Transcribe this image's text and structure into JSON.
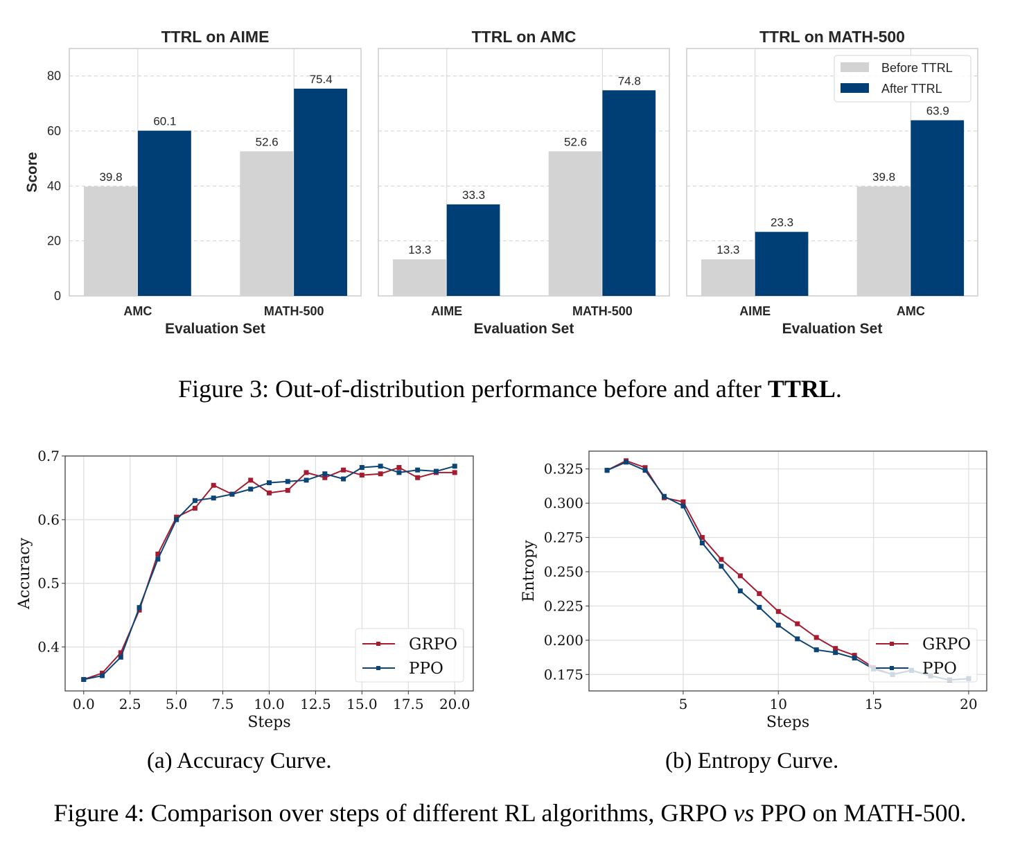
{
  "figure3": {
    "caption_prefix": "Figure 3: Out-of-distribution performance before and after ",
    "caption_bold": "TTRL",
    "caption_suffix": "."
  },
  "figure4": {
    "caption_prefix": "Figure 4: Comparison over steps of different RL algorithms, GRPO ",
    "caption_italic": "vs",
    "caption_suffix": " PPO on MATH-500.",
    "subcaption_a": "(a) Accuracy Curve.",
    "subcaption_b": "(b) Entropy Curve."
  },
  "colors": {
    "before": "#d3d3d3",
    "after": "#003f75",
    "grpo": "#a51c30",
    "ppo": "#0b4476"
  },
  "chart_data": [
    {
      "type": "bar",
      "title": "TTRL on AIME",
      "xlabel": "Evaluation Set",
      "ylabel": "Score",
      "categories": [
        "AMC",
        "MATH-500"
      ],
      "series": [
        {
          "name": "Before TTRL",
          "values": [
            39.8,
            52.6
          ]
        },
        {
          "name": "After TTRL",
          "values": [
            60.1,
            75.4
          ]
        }
      ],
      "ylim": [
        0,
        90
      ],
      "yticks": [
        0,
        20,
        40,
        60,
        80
      ],
      "grid": true
    },
    {
      "type": "bar",
      "title": "TTRL on AMC",
      "xlabel": "Evaluation Set",
      "ylabel": "",
      "categories": [
        "AIME",
        "MATH-500"
      ],
      "series": [
        {
          "name": "Before TTRL",
          "values": [
            13.3,
            52.6
          ]
        },
        {
          "name": "After TTRL",
          "values": [
            33.3,
            74.8
          ]
        }
      ],
      "ylim": [
        0,
        90
      ],
      "grid": true
    },
    {
      "type": "bar",
      "title": "TTRL on MATH-500",
      "xlabel": "Evaluation Set",
      "ylabel": "",
      "categories": [
        "AIME",
        "AMC"
      ],
      "series": [
        {
          "name": "Before TTRL",
          "values": [
            13.3,
            39.8
          ]
        },
        {
          "name": "After TTRL",
          "values": [
            23.3,
            63.9
          ]
        }
      ],
      "ylim": [
        0,
        90
      ],
      "legend": [
        "Before TTRL",
        "After TTRL"
      ],
      "legend_position": "top-right",
      "grid": true
    },
    {
      "type": "line",
      "title": "",
      "xlabel": "Steps",
      "ylabel": "Accuracy",
      "x": [
        0,
        1,
        2,
        3,
        4,
        5,
        6,
        7,
        8,
        9,
        10,
        11,
        12,
        13,
        14,
        15,
        16,
        17,
        18,
        19,
        20
      ],
      "series": [
        {
          "name": "GRPO",
          "values": [
            0.349,
            0.359,
            0.391,
            0.458,
            0.546,
            0.604,
            0.618,
            0.654,
            0.64,
            0.662,
            0.642,
            0.646,
            0.674,
            0.666,
            0.678,
            0.67,
            0.672,
            0.682,
            0.666,
            0.674,
            0.674
          ]
        },
        {
          "name": "PPO",
          "values": [
            0.349,
            0.355,
            0.384,
            0.462,
            0.538,
            0.6,
            0.63,
            0.634,
            0.64,
            0.648,
            0.658,
            0.66,
            0.662,
            0.672,
            0.664,
            0.682,
            0.684,
            0.674,
            0.678,
            0.676,
            0.684
          ]
        }
      ],
      "xlim": [
        -1,
        21
      ],
      "ylim": [
        0.331,
        0.7
      ],
      "xticks": [
        "0.0",
        "2.5",
        "5.0",
        "7.5",
        "10.0",
        "12.5",
        "15.0",
        "17.5",
        "20.0"
      ],
      "yticks": [
        "0.4",
        "0.5",
        "0.6",
        "0.7"
      ],
      "legend": [
        "GRPO",
        "PPO"
      ],
      "legend_position": "bottom-right",
      "grid": true
    },
    {
      "type": "line",
      "title": "",
      "xlabel": "Steps",
      "ylabel": "Entropy",
      "x": [
        1,
        2,
        3,
        4,
        5,
        6,
        7,
        8,
        9,
        10,
        11,
        12,
        13,
        14,
        15,
        16,
        17,
        18,
        19,
        20
      ],
      "series": [
        {
          "name": "GRPO",
          "values": [
            0.324,
            0.331,
            0.326,
            0.304,
            0.301,
            0.275,
            0.259,
            0.247,
            0.234,
            0.221,
            0.212,
            0.202,
            0.194,
            0.189,
            0.18,
            0.175,
            0.178,
            0.174,
            0.171,
            0.172
          ]
        },
        {
          "name": "PPO",
          "values": [
            0.324,
            0.33,
            0.324,
            0.305,
            0.298,
            0.271,
            0.254,
            0.236,
            0.224,
            0.211,
            0.201,
            0.193,
            0.191,
            0.187,
            0.179,
            0.175,
            0.178,
            0.174,
            0.171,
            0.172
          ]
        }
      ],
      "xlim": [
        0.05,
        20.95
      ],
      "ylim": [
        0.163,
        0.338
      ],
      "xticks": [
        "5",
        "10",
        "15",
        "20"
      ],
      "yticks": [
        "0.175",
        "0.200",
        "0.225",
        "0.250",
        "0.275",
        "0.300",
        "0.325"
      ],
      "legend": [
        "GRPO",
        "PPO"
      ],
      "legend_position": "bottom-right",
      "grid": true
    }
  ]
}
